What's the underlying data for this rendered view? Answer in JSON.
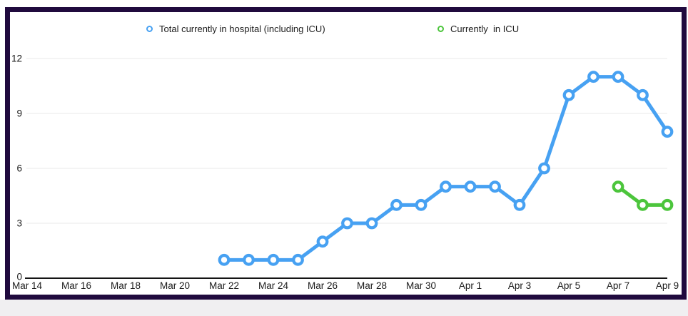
{
  "card": {
    "frame_color": "#200A3E",
    "background_color": "#FFFFFF"
  },
  "page": {
    "footer_strip_color": "#F0EFF1"
  },
  "chart_data": {
    "type": "line",
    "title": "",
    "xlabel": "",
    "ylabel": "",
    "grid": true,
    "legend_position": "top",
    "colors": {
      "grid_line": "#E9E9E9",
      "axis_line": "#141414",
      "tick_text": "#1A1A1A"
    },
    "y_axis": {
      "min": 0,
      "max": 12,
      "ticks": [
        0,
        3,
        6,
        9,
        12
      ]
    },
    "x_axis": {
      "first_day_label": "Mar 14",
      "last_day_label": "Apr 9",
      "ticks": [
        {
          "day": 0,
          "label": "Mar 14"
        },
        {
          "day": 2,
          "label": "Mar 16"
        },
        {
          "day": 4,
          "label": "Mar 18"
        },
        {
          "day": 6,
          "label": "Mar 20"
        },
        {
          "day": 8,
          "label": "Mar 22"
        },
        {
          "day": 10,
          "label": "Mar 24"
        },
        {
          "day": 12,
          "label": "Mar 26"
        },
        {
          "day": 14,
          "label": "Mar 28"
        },
        {
          "day": 16,
          "label": "Mar 30"
        },
        {
          "day": 18,
          "label": "Apr 1"
        },
        {
          "day": 20,
          "label": "Apr 3"
        },
        {
          "day": 22,
          "label": "Apr 5"
        },
        {
          "day": 24,
          "label": "Apr 7"
        },
        {
          "day": 26,
          "label": "Apr 9"
        }
      ]
    },
    "series": [
      {
        "name": "Total currently in hospital (including ICU)",
        "color": "#47A1F2",
        "marker": "open-circle",
        "start_day": 8,
        "dates": [
          "Mar 22",
          "Mar 23",
          "Mar 24",
          "Mar 25",
          "Mar 26",
          "Mar 27",
          "Mar 28",
          "Mar 29",
          "Mar 30",
          "Mar 31",
          "Apr 1",
          "Apr 2",
          "Apr 3",
          "Apr 4",
          "Apr 5",
          "Apr 6",
          "Apr 7",
          "Apr 8",
          "Apr 9"
        ],
        "values": [
          1,
          1,
          1,
          1,
          2,
          3,
          3,
          4,
          4,
          5,
          5,
          5,
          4,
          6,
          10,
          11,
          11,
          10,
          8
        ]
      },
      {
        "name": "Currently  in ICU",
        "color": "#4CC53C",
        "marker": "open-circle",
        "start_day": 24,
        "dates": [
          "Apr 7",
          "Apr 8",
          "Apr 9"
        ],
        "values": [
          5,
          4,
          4
        ]
      }
    ]
  }
}
